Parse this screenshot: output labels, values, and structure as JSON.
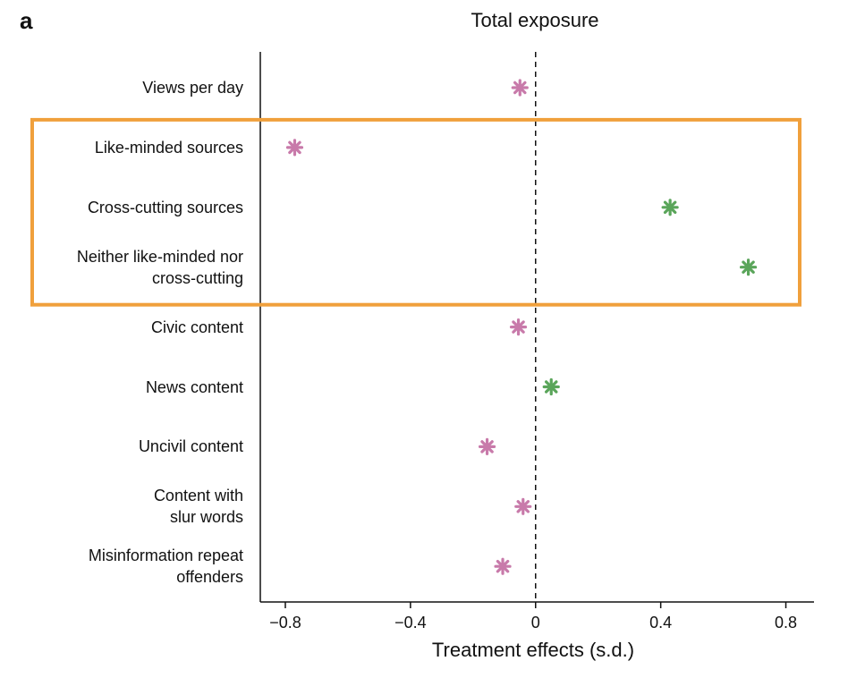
{
  "panel_label": "a",
  "chart_data": {
    "type": "scatter",
    "title": "Total exposure",
    "xlabel": "Treatment effects (s.d.)",
    "ylabel": "",
    "xlim": [
      -0.88,
      0.89
    ],
    "xticks": [
      -0.8,
      -0.4,
      0,
      0.4,
      0.8
    ],
    "xtick_labels": [
      "−0.8",
      "−0.4",
      "0",
      "0.4",
      "0.8"
    ],
    "reference_line": {
      "x": 0,
      "style": "dashed"
    },
    "highlight": {
      "categories": [
        "Like-minded sources",
        "Cross-cutting sources",
        "Neither like-minded nor cross-cutting"
      ],
      "color": "#f0a03c"
    },
    "colors": {
      "negative": "#c87aaa",
      "positive": "#5aa55a"
    },
    "marker": "asterisk",
    "grid": false,
    "legend": "none",
    "points": [
      {
        "category": "Views per day",
        "x": -0.05
      },
      {
        "category": "Like-minded sources",
        "x": -0.77
      },
      {
        "category": "Cross-cutting sources",
        "x": 0.43
      },
      {
        "category": "Neither like-minded nor\ncross-cutting",
        "x": 0.68
      },
      {
        "category": "Civic content",
        "x": -0.055
      },
      {
        "category": "News content",
        "x": 0.05
      },
      {
        "category": "Uncivil content",
        "x": -0.155
      },
      {
        "category": "Content with\nslur words",
        "x": -0.04
      },
      {
        "category": "Misinformation repeat\noffenders",
        "x": -0.105
      }
    ]
  }
}
